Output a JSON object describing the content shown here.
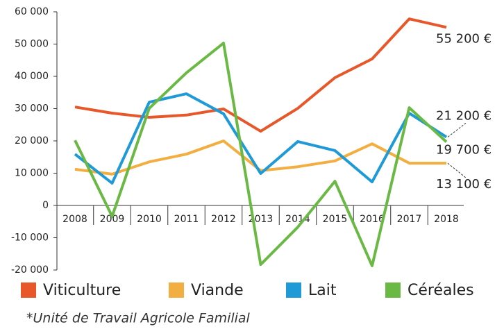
{
  "chart_data": {
    "type": "line",
    "categories": [
      "2008",
      "2009",
      "2010",
      "2011",
      "2012",
      "2013",
      "2014",
      "2015",
      "2016",
      "2017",
      "2018"
    ],
    "series": [
      {
        "name": "Viticulture",
        "color": "#e8572a",
        "values": [
          30500,
          28600,
          27300,
          28000,
          29900,
          23000,
          30100,
          39600,
          45400,
          57800,
          55200
        ],
        "value_labels": [
          null,
          null,
          null,
          null,
          null,
          null,
          null,
          null,
          null,
          null,
          "55 200 €"
        ]
      },
      {
        "name": "Viande",
        "color": "#f2ae40",
        "values": [
          11200,
          9700,
          13500,
          15900,
          20000,
          10800,
          12000,
          13800,
          19100,
          13100,
          13100
        ],
        "value_labels": [
          null,
          null,
          null,
          null,
          null,
          null,
          null,
          null,
          null,
          null,
          "13 100 €"
        ]
      },
      {
        "name": "Lait",
        "color": "#1f9ad6",
        "values": [
          15900,
          6900,
          32000,
          34600,
          28400,
          9900,
          19800,
          17000,
          7300,
          28600,
          21200
        ],
        "value_labels": [
          null,
          null,
          null,
          null,
          null,
          null,
          null,
          null,
          null,
          null,
          "21 200 €"
        ]
      },
      {
        "name": "Céréales",
        "color": "#6ab945",
        "values": [
          20200,
          -3400,
          30100,
          41100,
          50300,
          -18300,
          -6700,
          7500,
          -18700,
          30300,
          19700
        ],
        "value_labels": [
          null,
          null,
          null,
          null,
          null,
          null,
          null,
          null,
          null,
          null,
          "19 700 €"
        ]
      }
    ],
    "ylim": [
      -20000,
      60000
    ],
    "yticks": [
      {
        "value": -20000,
        "label": "-20 000"
      },
      {
        "value": -10000,
        "label": "-10 000"
      },
      0,
      {
        "value": 10000,
        "label": "10 000"
      },
      {
        "value": 20000,
        "label": "20 000"
      },
      {
        "value": 30000,
        "label": "30 000"
      },
      {
        "value": 40000,
        "label": "40 000"
      },
      {
        "value": 50000,
        "label": "50 000"
      },
      {
        "value": 60000,
        "label": "60 000"
      }
    ],
    "footnote": "*Unité de Travail Agricole Familial"
  }
}
